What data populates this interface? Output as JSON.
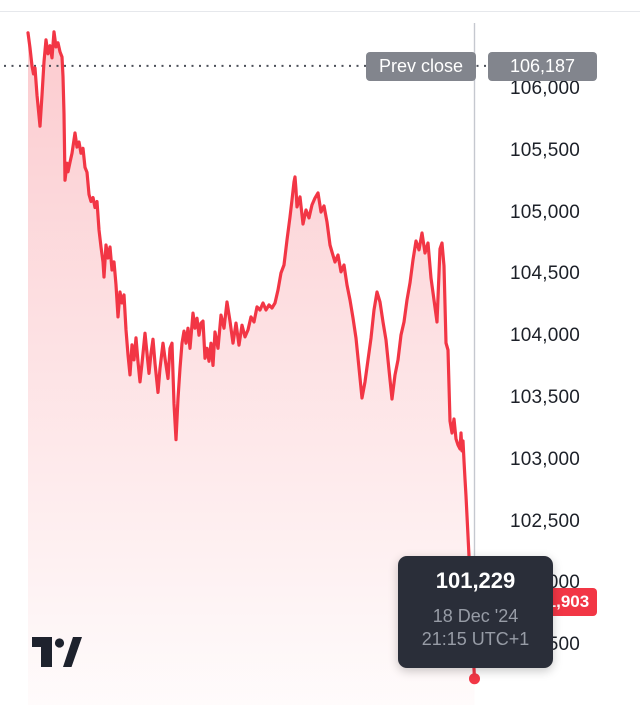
{
  "widget": "price-chart",
  "prev_close": {
    "label": "Prev close",
    "value": "106,187"
  },
  "price_badge": {
    "value": "101,903"
  },
  "tooltip": {
    "price": "101,229",
    "date": "18 Dec '24",
    "time": "21:15 UTC+1"
  },
  "logo_name": "TradingView",
  "colors": {
    "line": "#f23645",
    "fill_top": "rgba(242,54,69,0.26)",
    "fill_bottom": "rgba(242,54,69,0.02)",
    "badge_gray": "#82858d",
    "badge_red": "#f23645",
    "tooltip_bg": "#2a2e39",
    "tooltip_muted": "#979ca6",
    "axis_text": "#1c2028",
    "dotted_line": "#4b4f58",
    "crosshair": "#c5c8cf",
    "logo": "#1e222d"
  },
  "chart_data": {
    "type": "area",
    "title": "",
    "xlabel": "",
    "ylabel": "",
    "grid": false,
    "legend": false,
    "prev_close": 106187,
    "last_price_axis_badge": 101903,
    "selected_point": {
      "price": 101229,
      "date": "18 Dec '24",
      "time": "21:15 UTC+1"
    },
    "y_ticks": [
      {
        "price": 106000,
        "label": "106,000"
      },
      {
        "price": 105500,
        "label": "105,500"
      },
      {
        "price": 105000,
        "label": "105,000"
      },
      {
        "price": 104500,
        "label": "104,500"
      },
      {
        "price": 104000,
        "label": "104,000"
      },
      {
        "price": 103500,
        "label": "103,500"
      },
      {
        "price": 103000,
        "label": "103,000"
      },
      {
        "price": 102500,
        "label": "102,500"
      },
      {
        "price": 102000,
        "label": "102,000"
      },
      {
        "price": 101500,
        "label": "101,500"
      }
    ],
    "ylim": [
      101100,
      106550
    ],
    "points": [
      [
        28,
        106455
      ],
      [
        30,
        106333
      ],
      [
        32,
        106187
      ],
      [
        33.5,
        106122
      ],
      [
        35,
        106171
      ],
      [
        37,
        105951
      ],
      [
        40,
        105699
      ],
      [
        42,
        105951
      ],
      [
        44,
        106220
      ],
      [
        46,
        106398
      ],
      [
        48,
        106285
      ],
      [
        50,
        106350
      ],
      [
        52,
        106252
      ],
      [
        54,
        106463
      ],
      [
        56,
        106341
      ],
      [
        58,
        106374
      ],
      [
        60,
        106301
      ],
      [
        62,
        106260
      ],
      [
        63,
        106100
      ],
      [
        64,
        105800
      ],
      [
        65,
        105262
      ],
      [
        66,
        105330
      ],
      [
        67,
        105400
      ],
      [
        68,
        105330
      ],
      [
        70,
        105407
      ],
      [
        72,
        105480
      ],
      [
        75,
        105644
      ],
      [
        77,
        105530
      ],
      [
        79,
        105571
      ],
      [
        81,
        105480
      ],
      [
        83,
        105520
      ],
      [
        85,
        105366
      ],
      [
        87,
        105326
      ],
      [
        89,
        105147
      ],
      [
        91,
        105090
      ],
      [
        93,
        105122
      ],
      [
        95,
        105041
      ],
      [
        97,
        105090
      ],
      [
        99,
        104860
      ],
      [
        101,
        104722
      ],
      [
        103,
        104601
      ],
      [
        104,
        104479
      ],
      [
        106,
        104738
      ],
      [
        108,
        104633
      ],
      [
        110,
        104722
      ],
      [
        112,
        104536
      ],
      [
        114,
        104601
      ],
      [
        116,
        104415
      ],
      [
        118,
        104156
      ],
      [
        120,
        104358
      ],
      [
        122,
        104269
      ],
      [
        124,
        104334
      ],
      [
        126,
        104051
      ],
      [
        128,
        103849
      ],
      [
        130,
        103687
      ],
      [
        132,
        103930
      ],
      [
        134,
        103808
      ],
      [
        136,
        103986
      ],
      [
        138,
        103792
      ],
      [
        140,
        103630
      ],
      [
        142,
        103780
      ],
      [
        145,
        104024
      ],
      [
        147,
        103862
      ],
      [
        149,
        103699
      ],
      [
        151,
        103862
      ],
      [
        153,
        103976
      ],
      [
        155,
        103780
      ],
      [
        158,
        103545
      ],
      [
        160,
        103740
      ],
      [
        163,
        103943
      ],
      [
        165,
        103821
      ],
      [
        168,
        103658
      ],
      [
        170,
        103902
      ],
      [
        172,
        103943
      ],
      [
        174,
        103455
      ],
      [
        176,
        103163
      ],
      [
        178,
        103496
      ],
      [
        180,
        103740
      ],
      [
        182,
        103943
      ],
      [
        184,
        104041
      ],
      [
        186,
        103943
      ],
      [
        188,
        104065
      ],
      [
        190,
        103902
      ],
      [
        193,
        104187
      ],
      [
        195,
        104065
      ],
      [
        197,
        104146
      ],
      [
        199,
        104008
      ],
      [
        201,
        104106
      ],
      [
        203,
        104122
      ],
      [
        205,
        103821
      ],
      [
        207,
        103902
      ],
      [
        209,
        103797
      ],
      [
        211,
        103943
      ],
      [
        213,
        103764
      ],
      [
        215,
        104034
      ],
      [
        218,
        103902
      ],
      [
        221,
        104171
      ],
      [
        224,
        104065
      ],
      [
        227,
        104277
      ],
      [
        230,
        104122
      ],
      [
        233,
        103943
      ],
      [
        236,
        104106
      ],
      [
        239,
        103927
      ],
      [
        242,
        104089
      ],
      [
        245,
        103994
      ],
      [
        248,
        104051
      ],
      [
        251,
        104156
      ],
      [
        254,
        104115
      ],
      [
        257,
        104237
      ],
      [
        260,
        104212
      ],
      [
        263,
        104269
      ],
      [
        266,
        104212
      ],
      [
        269,
        104253
      ],
      [
        272,
        104228
      ],
      [
        275,
        104269
      ],
      [
        278,
        104374
      ],
      [
        281,
        104512
      ],
      [
        284,
        104576
      ],
      [
        287,
        104779
      ],
      [
        290,
        104965
      ],
      [
        292,
        105103
      ],
      [
        294,
        105248
      ],
      [
        295,
        105289
      ],
      [
        296,
        105184
      ],
      [
        297,
        105046
      ],
      [
        300,
        105127
      ],
      [
        303,
        104908
      ],
      [
        306,
        105021
      ],
      [
        309,
        104957
      ],
      [
        312,
        105062
      ],
      [
        315,
        105118
      ],
      [
        318,
        105159
      ],
      [
        321,
        105005
      ],
      [
        324,
        105054
      ],
      [
        327,
        104924
      ],
      [
        330,
        104738
      ],
      [
        332,
        104681
      ],
      [
        335,
        104600
      ],
      [
        338,
        104657
      ],
      [
        341,
        104520
      ],
      [
        344,
        104576
      ],
      [
        347,
        104414
      ],
      [
        350,
        104293
      ],
      [
        353,
        104147
      ],
      [
        356,
        103985
      ],
      [
        359,
        103743
      ],
      [
        362,
        103500
      ],
      [
        365,
        103630
      ],
      [
        368,
        103808
      ],
      [
        371,
        103985
      ],
      [
        374,
        104212
      ],
      [
        377,
        104358
      ],
      [
        380,
        104277
      ],
      [
        383,
        104115
      ],
      [
        386,
        103969
      ],
      [
        389,
        103727
      ],
      [
        392,
        103492
      ],
      [
        395,
        103686
      ],
      [
        398,
        103808
      ],
      [
        401,
        104010
      ],
      [
        404,
        104115
      ],
      [
        407,
        104293
      ],
      [
        410,
        104431
      ],
      [
        413,
        104617
      ],
      [
        416,
        104770
      ],
      [
        419,
        104698
      ],
      [
        422,
        104835
      ],
      [
        425,
        104673
      ],
      [
        428,
        104754
      ],
      [
        431,
        104471
      ],
      [
        434,
        104293
      ],
      [
        437,
        104115
      ],
      [
        440,
        104706
      ],
      [
        442,
        104754
      ],
      [
        444,
        104568
      ],
      [
        446,
        103945
      ],
      [
        448,
        103888
      ],
      [
        450,
        103314
      ],
      [
        452,
        103217
      ],
      [
        454,
        103330
      ],
      [
        456,
        103169
      ],
      [
        458,
        103120
      ],
      [
        460,
        103088
      ],
      [
        461,
        103217
      ],
      [
        462,
        103072
      ],
      [
        463,
        103152
      ],
      [
        464,
        102991
      ],
      [
        465,
        102845
      ],
      [
        466,
        102707
      ],
      [
        467,
        102546
      ],
      [
        468,
        102384
      ],
      [
        469,
        102222
      ],
      [
        470,
        102036
      ],
      [
        471,
        101858
      ],
      [
        472,
        101656
      ],
      [
        473,
        101454
      ],
      [
        474,
        101308
      ],
      [
        474.5,
        101229
      ]
    ]
  }
}
